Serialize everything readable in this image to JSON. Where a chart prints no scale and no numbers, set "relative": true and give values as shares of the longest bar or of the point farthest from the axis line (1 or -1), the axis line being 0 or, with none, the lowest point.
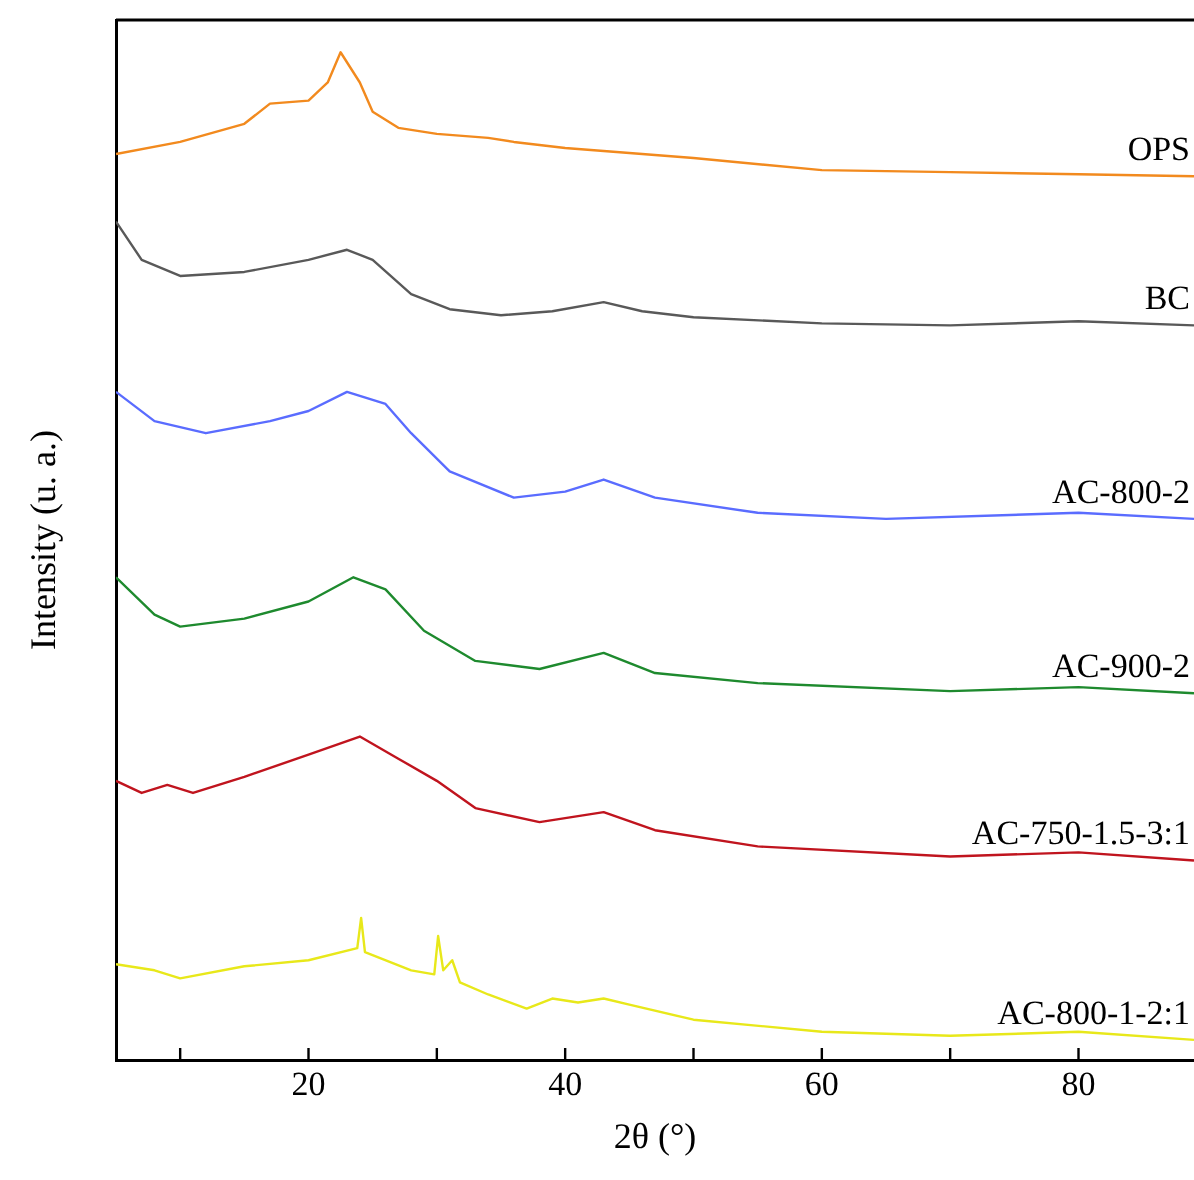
{
  "chart_data": {
    "type": "line",
    "xlabel": "2θ (°)",
    "ylabel": "Intensity (u. a.)",
    "relative": true,
    "xlim": [
      5,
      89
    ],
    "xticks": [
      {
        "value": 10,
        "label": null
      },
      20,
      {
        "value": 30,
        "label": null
      },
      40,
      {
        "value": 50,
        "label": null
      },
      60,
      {
        "value": 70,
        "label": null
      },
      80
    ],
    "grid": false,
    "legend": false,
    "marker": "none",
    "line_style": "solid",
    "series": [
      {
        "name": "OPS",
        "color": "#f28a1e",
        "x": [
          5,
          10,
          15,
          17,
          20,
          21.5,
          22.5,
          24,
          25,
          27,
          30,
          34,
          36,
          40,
          50,
          60,
          70,
          80,
          89
        ],
        "values": [
          0.899,
          0.911,
          0.929,
          0.949,
          0.952,
          0.97,
          1.0,
          0.97,
          0.941,
          0.925,
          0.919,
          0.915,
          0.911,
          0.905,
          0.895,
          0.883,
          0.881,
          0.879,
          0.877
        ]
      },
      {
        "name": "BC",
        "color": "#595959",
        "x": [
          5,
          7,
          10,
          15,
          20,
          23,
          25,
          28,
          31,
          35,
          39,
          43,
          46,
          50,
          60,
          70,
          80,
          89
        ],
        "values": [
          0.832,
          0.794,
          0.778,
          0.782,
          0.794,
          0.804,
          0.794,
          0.76,
          0.745,
          0.739,
          0.743,
          0.752,
          0.743,
          0.737,
          0.731,
          0.729,
          0.733,
          0.729
        ]
      },
      {
        "name": "AC-800-2",
        "color": "#5a6cff",
        "x": [
          5,
          8,
          12,
          17,
          20,
          23,
          26,
          28,
          31,
          36,
          40,
          43,
          47,
          55,
          65,
          80,
          89
        ],
        "values": [
          0.663,
          0.634,
          0.622,
          0.634,
          0.644,
          0.663,
          0.651,
          0.622,
          0.584,
          0.558,
          0.564,
          0.576,
          0.558,
          0.543,
          0.537,
          0.543,
          0.537
        ]
      },
      {
        "name": "AC-900-2",
        "color": "#1e8a2e",
        "x": [
          5,
          8,
          10,
          15,
          20,
          23.5,
          26,
          29,
          33,
          38,
          43,
          47,
          55,
          70,
          80,
          89
        ],
        "values": [
          0.479,
          0.442,
          0.43,
          0.438,
          0.455,
          0.479,
          0.467,
          0.426,
          0.396,
          0.388,
          0.404,
          0.384,
          0.374,
          0.366,
          0.37,
          0.364
        ]
      },
      {
        "name": "AC-750-1.5-3:1",
        "color": "#c0141e",
        "x": [
          5,
          7,
          9,
          11,
          15,
          20,
          24,
          27,
          30,
          33,
          38,
          43,
          47,
          55,
          70,
          80,
          89
        ],
        "values": [
          0.277,
          0.265,
          0.273,
          0.265,
          0.281,
          0.303,
          0.321,
          0.299,
          0.277,
          0.25,
          0.236,
          0.246,
          0.228,
          0.212,
          0.202,
          0.206,
          0.198
        ]
      },
      {
        "name": "AC-800-1-2:1",
        "color": "#e8e81a",
        "x": [
          5,
          8,
          10,
          15,
          20,
          23.8,
          24.1,
          24.4,
          28,
          29.8,
          30.1,
          30.5,
          31.2,
          31.8,
          34,
          37,
          39,
          41,
          43,
          45,
          50,
          60,
          70,
          80,
          89
        ],
        "values": [
          0.095,
          0.089,
          0.081,
          0.093,
          0.099,
          0.111,
          0.141,
          0.107,
          0.089,
          0.085,
          0.123,
          0.089,
          0.099,
          0.077,
          0.065,
          0.051,
          0.061,
          0.057,
          0.061,
          0.055,
          0.04,
          0.028,
          0.024,
          0.028,
          0.02
        ]
      }
    ]
  }
}
